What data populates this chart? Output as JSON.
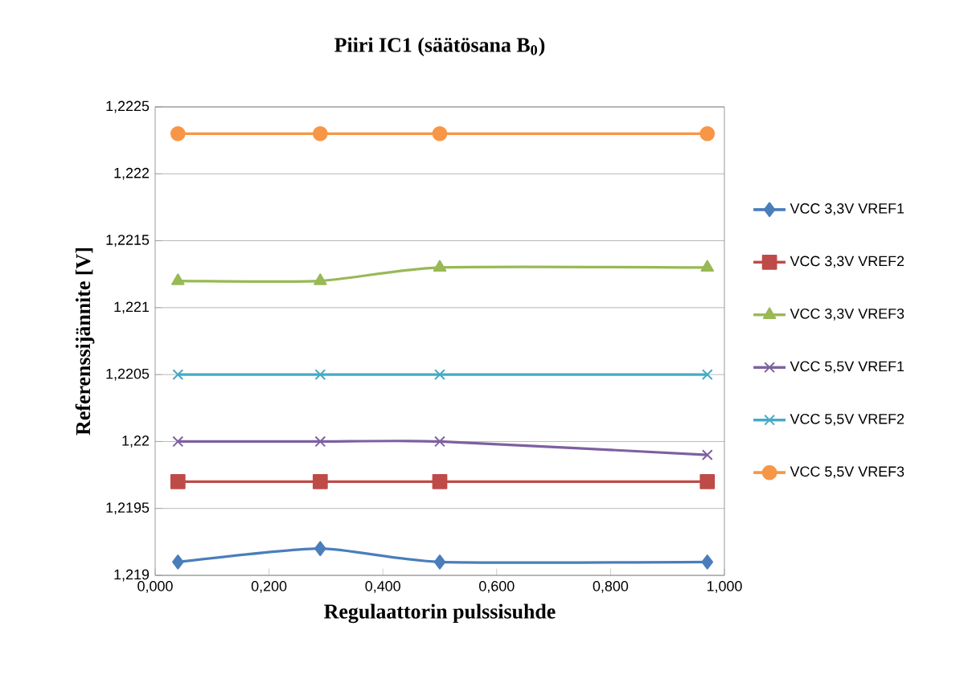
{
  "chart_data": {
    "type": "line",
    "title": "Piiri IC1 (säätösana B$_{0}$)",
    "xlabel": "Regulaattorin pulssisuhde",
    "ylabel": "Referenssijännite [V]",
    "x": [
      0.04,
      0.29,
      0.5,
      0.97
    ],
    "series": [
      {
        "name": "VCC 3,3V VREF1",
        "color": "#4a7ebb",
        "marker": "diamond",
        "values": [
          1.2191,
          1.2192,
          1.2191,
          1.2191
        ]
      },
      {
        "name": "VCC 3,3V VREF2",
        "color": "#be4b48",
        "marker": "square",
        "values": [
          1.2197,
          1.2197,
          1.2197,
          1.2197
        ]
      },
      {
        "name": "VCC 3,3V VREF3",
        "color": "#98b954",
        "marker": "triangle",
        "values": [
          1.2212,
          1.2212,
          1.2213,
          1.2213
        ]
      },
      {
        "name": "VCC 5,5V VREF1",
        "color": "#7d60a0",
        "marker": "cross",
        "values": [
          1.22,
          1.22,
          1.22,
          1.2199
        ]
      },
      {
        "name": "VCC 5,5V VREF2",
        "color": "#46aac5",
        "marker": "cross",
        "values": [
          1.2205,
          1.2205,
          1.2205,
          1.2205
        ]
      },
      {
        "name": "VCC 5,5V VREF3",
        "color": "#f79646",
        "marker": "circle",
        "values": [
          1.2223,
          1.2223,
          1.2223,
          1.2223
        ]
      }
    ],
    "xlim": [
      0,
      1
    ],
    "ylim": [
      1.219,
      1.2225
    ],
    "xticks": [
      {
        "value": 0,
        "label": "0,000"
      },
      {
        "value": 0.2,
        "label": "0,200"
      },
      {
        "value": 0.4,
        "label": "0,400"
      },
      {
        "value": 0.6,
        "label": "0,600"
      },
      {
        "value": 0.8,
        "label": "0,800"
      },
      {
        "value": 1,
        "label": "1,000"
      }
    ],
    "yticks": [
      {
        "value": 1.219,
        "label": "1,219"
      },
      {
        "value": 1.2195,
        "label": "1,2195"
      },
      {
        "value": 1.22,
        "label": "1,22"
      },
      {
        "value": 1.2205,
        "label": "1,2205"
      },
      {
        "value": 1.221,
        "label": "1,221"
      },
      {
        "value": 1.2215,
        "label": "1,2215"
      },
      {
        "value": 1.222,
        "label": "1,222"
      },
      {
        "value": 1.2225,
        "label": "1,2225"
      }
    ],
    "grid": "y",
    "legend": "right",
    "line_style": "solid"
  }
}
